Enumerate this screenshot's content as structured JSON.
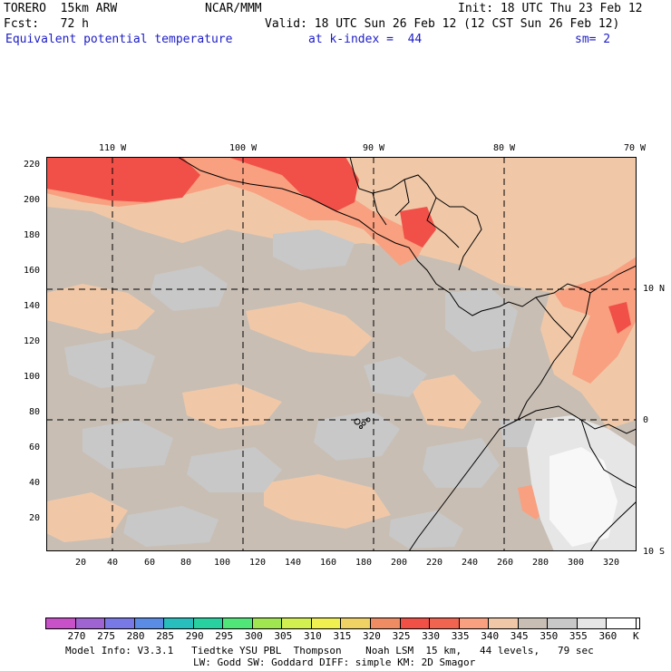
{
  "header": {
    "model": "TORERO  15km ARW",
    "org": "NCAR/MMM",
    "init": "Init: 18 UTC Thu 23 Feb 12",
    "fcst": "Fcst:   72 h",
    "valid": "Valid: 18 UTC Sun 26 Feb 12 (12 CST Sun 26 Feb 12)",
    "field": "Equivalent potential temperature",
    "level": "at k-index =  44",
    "smooth": "sm= 2"
  },
  "map": {
    "top_lon_labels": [
      "110 W",
      "100 W",
      "90 W",
      "80 W",
      "70 W"
    ],
    "right_lat_labels": [
      "10 N",
      "0",
      "10 S"
    ],
    "left_y_labels": [
      "220",
      "200",
      "180",
      "160",
      "140",
      "120",
      "100",
      "80",
      "60",
      "40",
      "20"
    ],
    "bottom_x_labels": [
      "20",
      "40",
      "60",
      "80",
      "100",
      "120",
      "140",
      "160",
      "180",
      "200",
      "220",
      "240",
      "260",
      "280",
      "300",
      "320"
    ],
    "colors": {
      "background": "#c8beb4",
      "tan": "#f0c8a8",
      "gray": "#c8c8c8",
      "salmon": "#f8a080",
      "red": "#f05048",
      "light": "#e6e6e6",
      "white": "#f8f8f8"
    }
  },
  "colorbar": {
    "labels": [
      "270",
      "275",
      "280",
      "285",
      "290",
      "295",
      "300",
      "305",
      "310",
      "315",
      "320",
      "325",
      "330",
      "335",
      "340",
      "345",
      "350",
      "355",
      "360"
    ],
    "unit": "K",
    "colors": [
      "#c850c8",
      "#a064d2",
      "#7878e6",
      "#5a8ce6",
      "#28bebe",
      "#28d2a0",
      "#50e678",
      "#a0e650",
      "#d2f050",
      "#f0f050",
      "#f0d264",
      "#f08c64",
      "#f05046",
      "#f06450",
      "#f8a080",
      "#f0c8a8",
      "#c8beb4",
      "#c8c8c8",
      "#e6e6e6",
      "#ffffff"
    ]
  },
  "footer": {
    "line1": "Model Info: V3.3.1   Tiedtke YSU PBL  Thompson    Noah LSM  15 km,   44 levels,   79 sec",
    "line2": "LW: Godd SW: Goddard DIFF: simple KM: 2D Smagor"
  }
}
